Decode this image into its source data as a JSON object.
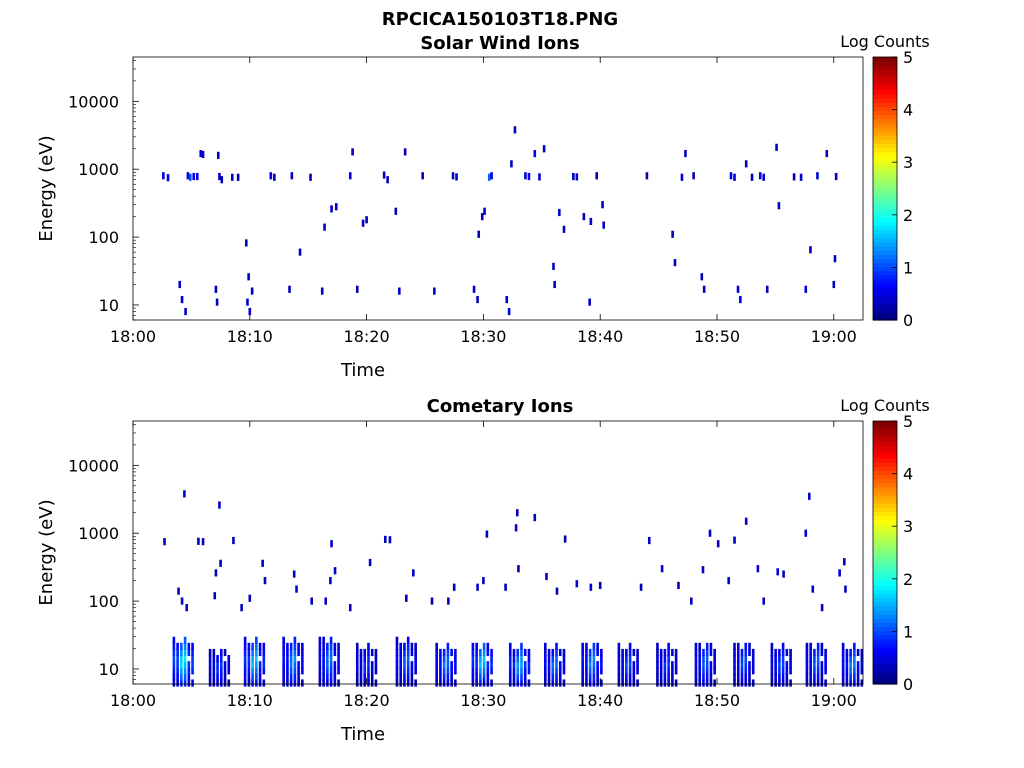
{
  "figure": {
    "title": "RPCICA150103T18.PNG"
  },
  "chart_data": [
    {
      "type": "heatmap",
      "title": "Solar Wind Ions",
      "xlabel": "Time",
      "ylabel": "Energy (eV)",
      "colorbar_label": "Log Counts",
      "x_ticks": [
        "18:00",
        "18:10",
        "18:20",
        "18:30",
        "18:40",
        "18:50",
        "19:00"
      ],
      "xlim_minutes": [
        0,
        62.5
      ],
      "y_ticks": [
        "10",
        "100",
        "1000",
        "10000"
      ],
      "ylim": [
        6,
        45000
      ],
      "y_scale": "log",
      "colorbar_ticks": [
        "0",
        "1",
        "2",
        "3",
        "4",
        "5"
      ],
      "clim": [
        0,
        5
      ],
      "colormap": "jet",
      "cells": [
        [
          2.6,
          800,
          0.5
        ],
        [
          3.0,
          750,
          0.5
        ],
        [
          4.0,
          20,
          0.4
        ],
        [
          4.2,
          12,
          0.4
        ],
        [
          4.5,
          8,
          0.4
        ],
        [
          4.7,
          800,
          0.5
        ],
        [
          4.9,
          760,
          1.0
        ],
        [
          5.2,
          780,
          0.6
        ],
        [
          5.5,
          780,
          0.5
        ],
        [
          5.8,
          1700,
          0.4
        ],
        [
          6.0,
          1650,
          0.3
        ],
        [
          7.1,
          17,
          0.3
        ],
        [
          7.2,
          11,
          0.3
        ],
        [
          7.3,
          1600,
          0.3
        ],
        [
          7.4,
          780,
          0.3
        ],
        [
          7.6,
          700,
          0.3
        ],
        [
          8.5,
          760,
          0.4
        ],
        [
          9.0,
          760,
          0.3
        ],
        [
          9.7,
          82,
          0.3
        ],
        [
          9.8,
          11,
          0.3
        ],
        [
          9.9,
          26,
          0.3
        ],
        [
          10.0,
          8,
          0.4
        ],
        [
          10.2,
          16,
          0.3
        ],
        [
          11.8,
          800,
          0.5
        ],
        [
          12.1,
          760,
          0.4
        ],
        [
          13.4,
          17,
          0.3
        ],
        [
          13.6,
          800,
          0.3
        ],
        [
          14.3,
          60,
          0.3
        ],
        [
          15.2,
          760,
          0.3
        ],
        [
          16.2,
          16,
          0.3
        ],
        [
          16.4,
          140,
          0.3
        ],
        [
          17.0,
          260,
          0.3
        ],
        [
          17.4,
          280,
          0.3
        ],
        [
          18.6,
          800,
          0.5
        ],
        [
          18.8,
          1800,
          0.3
        ],
        [
          19.2,
          17,
          0.3
        ],
        [
          19.7,
          160,
          0.3
        ],
        [
          20.0,
          180,
          0.3
        ],
        [
          21.5,
          820,
          0.4
        ],
        [
          21.8,
          700,
          0.3
        ],
        [
          22.5,
          240,
          0.3
        ],
        [
          22.8,
          16,
          0.3
        ],
        [
          23.3,
          1800,
          0.3
        ],
        [
          24.8,
          800,
          0.3
        ],
        [
          25.8,
          16,
          0.3
        ],
        [
          27.4,
          800,
          0.3
        ],
        [
          27.7,
          770,
          0.3
        ],
        [
          29.2,
          17,
          0.4
        ],
        [
          29.5,
          12,
          0.3
        ],
        [
          29.6,
          110,
          0.3
        ],
        [
          29.9,
          200,
          0.3
        ],
        [
          30.1,
          240,
          0.3
        ],
        [
          30.5,
          760,
          1.1
        ],
        [
          30.7,
          800,
          0.5
        ],
        [
          32.0,
          12,
          0.4
        ],
        [
          32.2,
          8,
          0.5
        ],
        [
          32.4,
          1200,
          0.3
        ],
        [
          32.7,
          3800,
          0.3
        ],
        [
          33.6,
          800,
          0.5
        ],
        [
          33.9,
          780,
          0.6
        ],
        [
          34.4,
          1700,
          0.6
        ],
        [
          34.8,
          770,
          0.4
        ],
        [
          35.2,
          2000,
          0.3
        ],
        [
          36.0,
          37,
          0.3
        ],
        [
          36.1,
          20,
          0.3
        ],
        [
          36.5,
          230,
          0.3
        ],
        [
          36.9,
          130,
          0.3
        ],
        [
          37.7,
          780,
          0.4
        ],
        [
          38.0,
          770,
          0.4
        ],
        [
          38.6,
          200,
          0.3
        ],
        [
          39.1,
          11,
          0.3
        ],
        [
          39.2,
          170,
          0.3
        ],
        [
          39.7,
          800,
          0.3
        ],
        [
          40.2,
          300,
          0.3
        ],
        [
          40.3,
          150,
          0.3
        ],
        [
          44.0,
          800,
          0.3
        ],
        [
          46.2,
          110,
          0.3
        ],
        [
          46.4,
          42,
          0.3
        ],
        [
          47.0,
          760,
          0.4
        ],
        [
          47.3,
          1700,
          0.3
        ],
        [
          48.0,
          800,
          0.3
        ],
        [
          48.7,
          26,
          0.3
        ],
        [
          48.9,
          17,
          0.3
        ],
        [
          51.2,
          800,
          0.5
        ],
        [
          51.5,
          760,
          0.4
        ],
        [
          51.8,
          17,
          0.5
        ],
        [
          52.0,
          12,
          0.5
        ],
        [
          52.5,
          1200,
          0.3
        ],
        [
          53.0,
          760,
          0.3
        ],
        [
          53.7,
          800,
          0.5
        ],
        [
          54.0,
          760,
          0.4
        ],
        [
          54.3,
          17,
          0.3
        ],
        [
          55.1,
          2100,
          0.3
        ],
        [
          55.3,
          290,
          0.3
        ],
        [
          56.6,
          770,
          0.3
        ],
        [
          57.2,
          760,
          0.4
        ],
        [
          57.6,
          17,
          0.4
        ],
        [
          58.0,
          65,
          0.3
        ],
        [
          58.6,
          800,
          0.4
        ],
        [
          59.4,
          1700,
          0.3
        ],
        [
          60.0,
          20,
          0.3
        ],
        [
          60.1,
          48,
          0.3
        ],
        [
          60.2,
          780,
          0.3
        ]
      ]
    },
    {
      "type": "heatmap",
      "title": "Cometary Ions",
      "xlabel": "Time",
      "ylabel": "Energy (eV)",
      "colorbar_label": "Log Counts",
      "x_ticks": [
        "18:00",
        "18:10",
        "18:20",
        "18:30",
        "18:40",
        "18:50",
        "19:00"
      ],
      "xlim_minutes": [
        0,
        62.5
      ],
      "y_ticks": [
        "10",
        "100",
        "1000",
        "10000"
      ],
      "ylim": [
        6,
        45000
      ],
      "y_scale": "log",
      "colorbar_ticks": [
        "0",
        "1",
        "2",
        "3",
        "4",
        "5"
      ],
      "clim": [
        0,
        5
      ],
      "colormap": "jet",
      "bursts": [
        {
          "t": 3.5,
          "emax": 28,
          "hi": 1.8
        },
        {
          "t": 6.6,
          "emax": 20,
          "hi": 0.9
        },
        {
          "t": 9.6,
          "emax": 28,
          "hi": 1.6
        },
        {
          "t": 12.9,
          "emax": 28,
          "hi": 1.3
        },
        {
          "t": 16.0,
          "emax": 30,
          "hi": 1.2
        },
        {
          "t": 19.2,
          "emax": 22,
          "hi": 0.9
        },
        {
          "t": 22.6,
          "emax": 28,
          "hi": 1.1
        },
        {
          "t": 26.0,
          "emax": 24,
          "hi": 1.2
        },
        {
          "t": 29.1,
          "emax": 26,
          "hi": 1.6
        },
        {
          "t": 32.3,
          "emax": 22,
          "hi": 1.5
        },
        {
          "t": 35.3,
          "emax": 22,
          "hi": 1.2
        },
        {
          "t": 38.5,
          "emax": 26,
          "hi": 1.3
        },
        {
          "t": 41.6,
          "emax": 22,
          "hi": 1.0
        },
        {
          "t": 44.9,
          "emax": 22,
          "hi": 0.9
        },
        {
          "t": 48.2,
          "emax": 26,
          "hi": 1.1
        },
        {
          "t": 51.5,
          "emax": 26,
          "hi": 1.0
        },
        {
          "t": 54.7,
          "emax": 22,
          "hi": 1.0
        },
        {
          "t": 57.7,
          "emax": 26,
          "hi": 1.1
        },
        {
          "t": 60.8,
          "emax": 22,
          "hi": 1.3
        }
      ],
      "cells": [
        [
          2.7,
          750,
          0.3
        ],
        [
          3.9,
          140,
          0.3
        ],
        [
          4.2,
          100,
          0.4
        ],
        [
          4.4,
          3800,
          0.4
        ],
        [
          4.6,
          80,
          0.3
        ],
        [
          5.6,
          760,
          0.3
        ],
        [
          6.0,
          750,
          0.3
        ],
        [
          7.0,
          120,
          0.3
        ],
        [
          7.1,
          260,
          0.3
        ],
        [
          7.4,
          2600,
          0.3
        ],
        [
          7.5,
          360,
          0.3
        ],
        [
          8.6,
          780,
          0.3
        ],
        [
          9.3,
          80,
          0.3
        ],
        [
          10.0,
          110,
          0.3
        ],
        [
          11.1,
          360,
          0.4
        ],
        [
          11.3,
          200,
          0.3
        ],
        [
          13.8,
          250,
          0.4
        ],
        [
          14.0,
          150,
          0.4
        ],
        [
          15.3,
          100,
          0.3
        ],
        [
          16.5,
          100,
          0.3
        ],
        [
          16.9,
          200,
          0.4
        ],
        [
          17.0,
          700,
          0.3
        ],
        [
          17.3,
          280,
          0.3
        ],
        [
          18.6,
          80,
          0.3
        ],
        [
          20.3,
          370,
          0.3
        ],
        [
          21.6,
          810,
          0.3
        ],
        [
          22.0,
          800,
          0.3
        ],
        [
          23.4,
          110,
          0.3
        ],
        [
          24.0,
          260,
          0.3
        ],
        [
          25.6,
          100,
          0.3
        ],
        [
          27.0,
          100,
          0.3
        ],
        [
          27.5,
          160,
          0.3
        ],
        [
          29.5,
          160,
          0.4
        ],
        [
          30.0,
          200,
          0.3
        ],
        [
          30.3,
          970,
          0.3
        ],
        [
          31.9,
          160,
          0.3
        ],
        [
          32.8,
          1200,
          0.4
        ],
        [
          32.9,
          2000,
          0.3
        ],
        [
          33.0,
          300,
          0.3
        ],
        [
          34.4,
          1700,
          0.3
        ],
        [
          35.4,
          230,
          0.3
        ],
        [
          36.3,
          140,
          0.3
        ],
        [
          37.0,
          820,
          0.3
        ],
        [
          38.0,
          180,
          0.4
        ],
        [
          39.2,
          160,
          0.4
        ],
        [
          40.0,
          170,
          0.3
        ],
        [
          43.5,
          160,
          0.3
        ],
        [
          44.2,
          780,
          0.3
        ],
        [
          45.3,
          300,
          0.4
        ],
        [
          46.7,
          170,
          0.3
        ],
        [
          47.8,
          100,
          0.3
        ],
        [
          48.8,
          290,
          0.3
        ],
        [
          49.4,
          1000,
          0.4
        ],
        [
          50.1,
          700,
          0.3
        ],
        [
          51.0,
          200,
          0.3
        ],
        [
          51.5,
          790,
          0.3
        ],
        [
          52.5,
          1500,
          0.3
        ],
        [
          53.5,
          300,
          0.4
        ],
        [
          54.0,
          100,
          0.3
        ],
        [
          55.2,
          270,
          0.5
        ],
        [
          55.7,
          250,
          0.3
        ],
        [
          57.6,
          1000,
          0.4
        ],
        [
          57.9,
          3500,
          0.4
        ],
        [
          58.2,
          150,
          0.4
        ],
        [
          59.0,
          80,
          0.3
        ],
        [
          60.5,
          260,
          0.4
        ],
        [
          60.9,
          380,
          0.3
        ],
        [
          61.0,
          150,
          0.3
        ]
      ]
    }
  ]
}
